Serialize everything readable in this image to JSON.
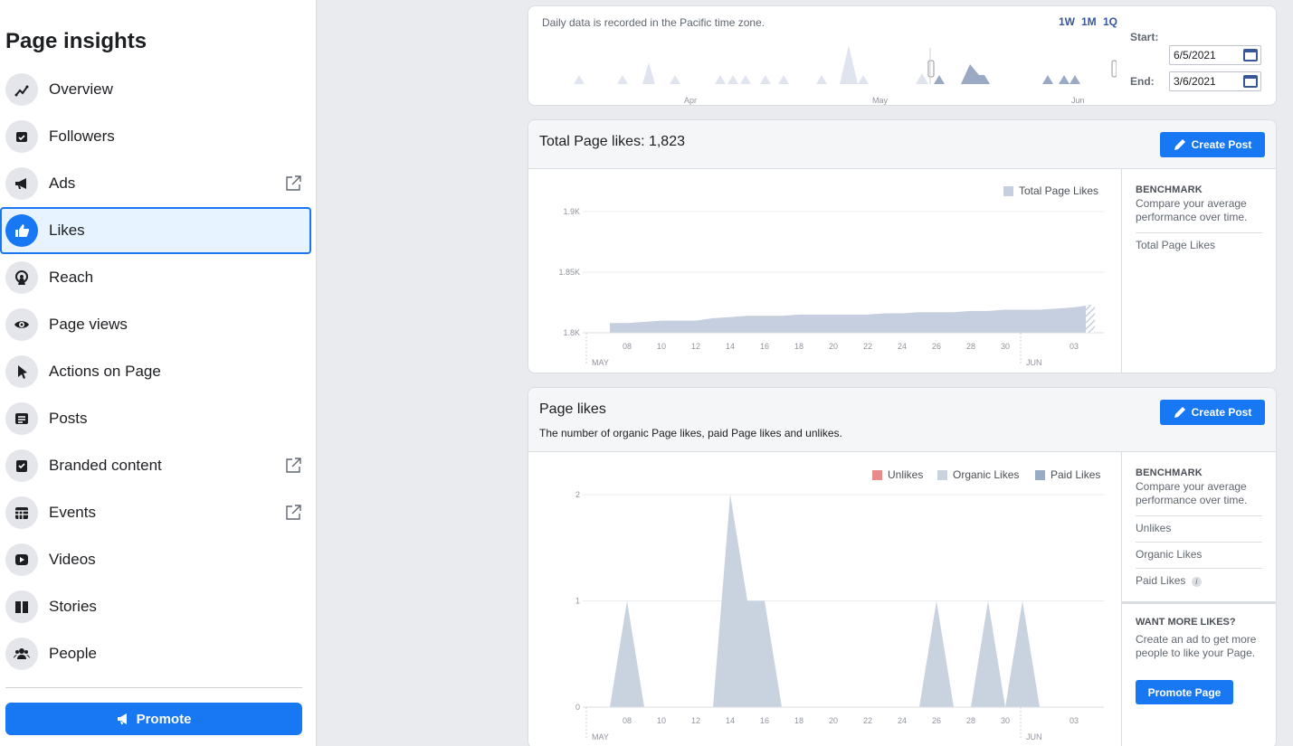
{
  "sidebar": {
    "title": "Page insights",
    "items": [
      {
        "label": "Overview",
        "icon": "overview-icon",
        "external": false,
        "active": false
      },
      {
        "label": "Followers",
        "icon": "followers-icon",
        "external": false,
        "active": false
      },
      {
        "label": "Ads",
        "icon": "megaphone-icon",
        "external": true,
        "active": false
      },
      {
        "label": "Likes",
        "icon": "thumbs-up-icon",
        "external": false,
        "active": true
      },
      {
        "label": "Reach",
        "icon": "reach-icon",
        "external": false,
        "active": false
      },
      {
        "label": "Page views",
        "icon": "eye-icon",
        "external": false,
        "active": false
      },
      {
        "label": "Actions on Page",
        "icon": "cursor-icon",
        "external": false,
        "active": false
      },
      {
        "label": "Posts",
        "icon": "posts-icon",
        "external": false,
        "active": false
      },
      {
        "label": "Branded content",
        "icon": "branded-icon",
        "external": true,
        "active": false
      },
      {
        "label": "Events",
        "icon": "calendar-icon",
        "external": true,
        "active": false
      },
      {
        "label": "Videos",
        "icon": "video-icon",
        "external": false,
        "active": false
      },
      {
        "label": "Stories",
        "icon": "book-icon",
        "external": false,
        "active": false
      },
      {
        "label": "People",
        "icon": "people-icon",
        "external": false,
        "active": false
      }
    ],
    "promote_label": "Promote"
  },
  "range": {
    "timezone_note": "Daily data is recorded in the Pacific time zone.",
    "buttons": [
      "1W",
      "1M",
      "1Q"
    ],
    "start_label": "Start:",
    "end_label": "End:",
    "start_value": "6/5/2021",
    "end_value": "3/6/2021",
    "months": [
      "Apr",
      "May",
      "Jun"
    ]
  },
  "total_likes": {
    "title": "Total Page likes: 1,823",
    "create_post_label": "Create Post",
    "legend": "Total Page Likes",
    "benchmark_title": "BENCHMARK",
    "benchmark_text": "Compare your average performance over time.",
    "benchmark_items": [
      "Total Page Likes"
    ]
  },
  "page_likes": {
    "title": "Page likes",
    "subtitle": "The number of organic Page likes, paid Page likes and unlikes.",
    "create_post_label": "Create Post",
    "legend": [
      "Unlikes",
      "Organic Likes",
      "Paid Likes"
    ],
    "benchmark_title": "BENCHMARK",
    "benchmark_text": "Compare your average performance over time.",
    "benchmark_items": [
      "Unlikes",
      "Organic Likes",
      "Paid Likes"
    ],
    "more_title": "WANT MORE LIKES?",
    "more_text": "Create an ad to get more people to like your Page.",
    "promote_page_label": "Promote Page"
  },
  "colors": {
    "accent": "#1877f2",
    "area": "#c5cfdf",
    "unlikes": "#e68a8a",
    "organic": "#c9d3e0",
    "paid": "#9aaac4"
  },
  "chart_data": [
    {
      "type": "area",
      "x": [
        "07",
        "08",
        "09",
        "10",
        "11",
        "12",
        "13",
        "14",
        "15",
        "16",
        "17",
        "18",
        "19",
        "20",
        "21",
        "22",
        "23",
        "24",
        "25",
        "26",
        "27",
        "28",
        "29",
        "30",
        "31",
        "01",
        "02",
        "03",
        "04"
      ],
      "x_tick_labels": [
        "08",
        "10",
        "12",
        "14",
        "16",
        "18",
        "20",
        "22",
        "24",
        "26",
        "28",
        "30",
        "03"
      ],
      "x_group_labels": [
        "MAY",
        "JUN"
      ],
      "series": [
        {
          "name": "Total Page Likes",
          "values": [
            1808,
            1808,
            1809,
            1810,
            1810,
            1810,
            1812,
            1813,
            1814,
            1814,
            1814,
            1815,
            1815,
            1815,
            1815,
            1815,
            1816,
            1816,
            1817,
            1817,
            1817,
            1818,
            1818,
            1819,
            1819,
            1819,
            1820,
            1821,
            1823
          ]
        }
      ],
      "y_ticks": [
        "1.8K",
        "1.85K",
        "1.9K"
      ],
      "ylim": [
        1800,
        1900
      ]
    },
    {
      "type": "area",
      "x": [
        "07",
        "08",
        "09",
        "10",
        "11",
        "12",
        "13",
        "14",
        "15",
        "16",
        "17",
        "18",
        "19",
        "20",
        "21",
        "22",
        "23",
        "24",
        "25",
        "26",
        "27",
        "28",
        "29",
        "30",
        "31",
        "01",
        "02",
        "03",
        "04"
      ],
      "x_tick_labels": [
        "08",
        "10",
        "12",
        "14",
        "16",
        "18",
        "20",
        "22",
        "24",
        "26",
        "28",
        "30",
        "03"
      ],
      "x_group_labels": [
        "MAY",
        "JUN"
      ],
      "series": [
        {
          "name": "Unlikes",
          "values": [
            0,
            0,
            0,
            0,
            0,
            0,
            0,
            0,
            0,
            0,
            0,
            0,
            0,
            0,
            0,
            0,
            0,
            0,
            0,
            0,
            0,
            0,
            0,
            0,
            0,
            0,
            0,
            0,
            0
          ]
        },
        {
          "name": "Organic Likes",
          "values": [
            0,
            1,
            0,
            0,
            0,
            0,
            0,
            2,
            1,
            1,
            0,
            0,
            0,
            0,
            0,
            0,
            0,
            0,
            0,
            1,
            0,
            0,
            1,
            0,
            1,
            0,
            0,
            0,
            0
          ]
        },
        {
          "name": "Paid Likes",
          "values": [
            0,
            0,
            0,
            0,
            0,
            0,
            0,
            0,
            0,
            0,
            0,
            0,
            0,
            0,
            0,
            0,
            0,
            0,
            0,
            0,
            0,
            0,
            0,
            0,
            0,
            0,
            0,
            0,
            0
          ]
        }
      ],
      "y_ticks": [
        "0",
        "1",
        "2"
      ],
      "ylim": [
        0,
        2
      ]
    }
  ]
}
